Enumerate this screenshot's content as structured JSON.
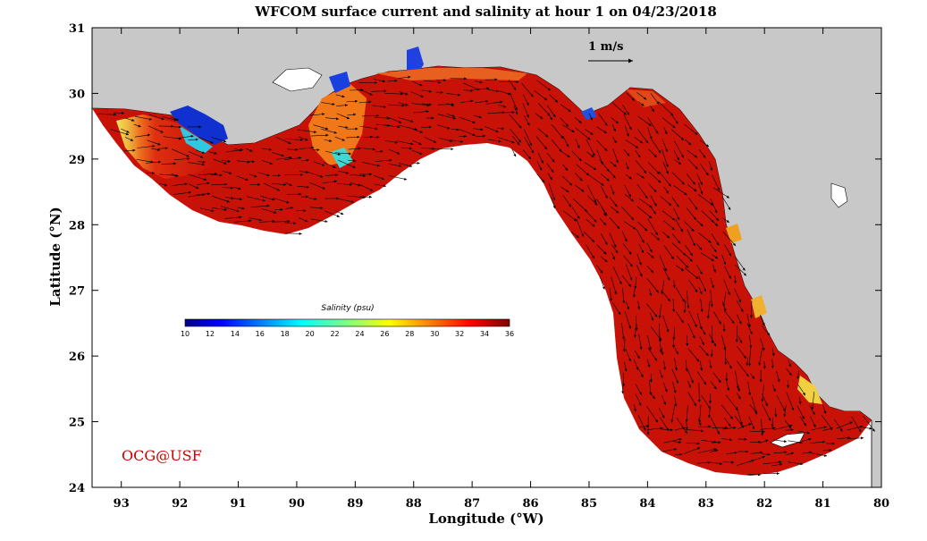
{
  "title": "WFCOM surface current and salinity at hour 1 on 04/23/2018",
  "xlabel": "Longitude (°W)",
  "ylabel": "Latitude (°N)",
  "watermark": "OCG@USF",
  "scale_arrow": {
    "label": "1 m/s",
    "speed_ms": 1
  },
  "colorbar": {
    "title": "Salinity (psu)",
    "range": [
      10,
      36
    ],
    "ticks": [
      "10",
      "12",
      "14",
      "16",
      "18",
      "20",
      "22",
      "24",
      "26",
      "28",
      "30",
      "32",
      "34",
      "36"
    ],
    "colormap": "jet"
  },
  "chart_data": {
    "type": "heatmap",
    "title": "WFCOM surface current and salinity at hour 1 on 04/23/2018",
    "xlabel": "Longitude (°W)",
    "ylabel": "Latitude (°N)",
    "xlim": [
      93.5,
      80
    ],
    "ylim": [
      24,
      31
    ],
    "x_ticks": [
      "93",
      "92",
      "91",
      "90",
      "89",
      "88",
      "87",
      "86",
      "85",
      "84",
      "83",
      "82",
      "81",
      "80"
    ],
    "y_ticks": [
      "24",
      "25",
      "26",
      "27",
      "28",
      "29",
      "30",
      "31"
    ],
    "field": "salinity",
    "units": "psu",
    "value_range": [
      10,
      36
    ],
    "vector_field": "surface current",
    "vector_scale_ms": 1,
    "domain": "West Florida / northern Gulf of Mexico shelf",
    "colors": {
      "land": "#c8c8c8",
      "water_outside": "#ffffff",
      "text_watermark": "#cc0000"
    }
  }
}
